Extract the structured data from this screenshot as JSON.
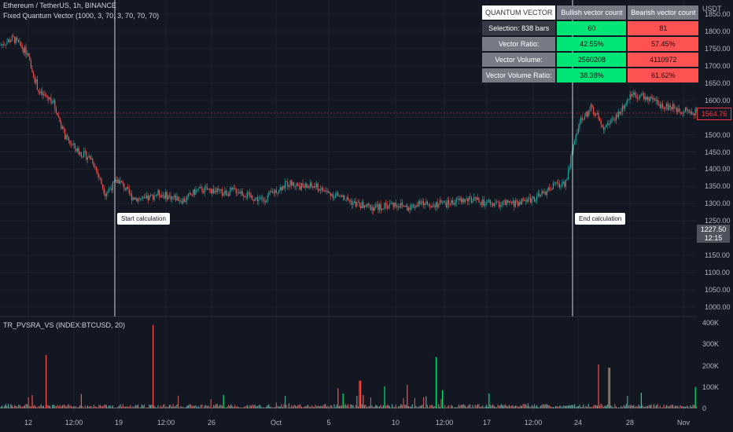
{
  "header": {
    "symbol_line": "Ethereum / TetherUS, 1h, BINANCE",
    "indicator_line": "Fixed Quantum Vector (1000, 3, 70, 3, 70, 70, 70)",
    "volume_indicator": "TR_PVSRA_VS (INDEX:BTCUSD, 20)"
  },
  "price_axis": {
    "currency": "USDT",
    "ticks": [
      "1850.00",
      "1800.00",
      "1750.00",
      "1700.00",
      "1650.00",
      "1600.00",
      "1550.00",
      "1500.00",
      "1450.00",
      "1400.00",
      "1350.00",
      "1300.00",
      "1250.00",
      "1200.00",
      "1150.00",
      "1100.00",
      "1050.00",
      "1000.00"
    ],
    "current_price": "1564.76",
    "crosshair_price": "1227.50",
    "crosshair_time": "12:15"
  },
  "volume_axis": {
    "ticks": [
      "400K",
      "300K",
      "200K",
      "100K",
      "0"
    ]
  },
  "time_axis": {
    "labels": [
      "12",
      "12:00",
      "19",
      "12:00",
      "26",
      "Oct",
      "5",
      "10",
      "12:00",
      "17",
      "12:00",
      "24",
      "28",
      "Nov"
    ]
  },
  "table": {
    "title": "QUANTUM VECTOR",
    "col_bull": "Bullish vector count",
    "col_bear": "Bearish vector count",
    "rows": [
      {
        "label": "Selection: 838 bars",
        "bull": "60",
        "bear": "81"
      },
      {
        "label": "Vector Ratio:",
        "bull": "42.55%",
        "bear": "57.45%"
      },
      {
        "label": "Vector Volume:",
        "bull": "2560208",
        "bear": "4110972"
      },
      {
        "label": "Vector Volume Ratio:",
        "bull": "38.38%",
        "bear": "61.62%"
      }
    ]
  },
  "markers": {
    "start": "Start calculation",
    "end": "End calculation"
  },
  "colors": {
    "bull": "#26a69a",
    "bear": "#ef5350",
    "vector_bull": "#00e676",
    "vector_bear": "#ff5252",
    "background": "#131722",
    "current_price": "#f23645"
  },
  "chart_data": {
    "type": "candlestick",
    "price_ylim": [
      1000,
      1850
    ],
    "volume_ylim": [
      0,
      400000
    ],
    "close_path": [
      {
        "date": "Sep 11",
        "close": 1760
      },
      {
        "date": "Sep 12",
        "close": 1780
      },
      {
        "date": "Sep 13",
        "close": 1740
      },
      {
        "date": "Sep 14",
        "close": 1620
      },
      {
        "date": "Sep 15",
        "close": 1600
      },
      {
        "date": "Sep 16",
        "close": 1490
      },
      {
        "date": "Sep 17",
        "close": 1450
      },
      {
        "date": "Sep 18",
        "close": 1430
      },
      {
        "date": "Sep 19",
        "close": 1330
      },
      {
        "date": "Sep 20",
        "close": 1370
      },
      {
        "date": "Sep 21",
        "close": 1320
      },
      {
        "date": "Sep 22",
        "close": 1310
      },
      {
        "date": "Sep 23",
        "close": 1330
      },
      {
        "date": "Sep 24",
        "close": 1320
      },
      {
        "date": "Sep 25",
        "close": 1310
      },
      {
        "date": "Sep 26",
        "close": 1340
      },
      {
        "date": "Sep 27",
        "close": 1340
      },
      {
        "date": "Sep 28",
        "close": 1330
      },
      {
        "date": "Sep 29",
        "close": 1340
      },
      {
        "date": "Sep 30",
        "close": 1320
      },
      {
        "date": "Oct 1",
        "close": 1310
      },
      {
        "date": "Oct 2",
        "close": 1340
      },
      {
        "date": "Oct 3",
        "close": 1360
      },
      {
        "date": "Oct 4",
        "close": 1350
      },
      {
        "date": "Oct 5",
        "close": 1350
      },
      {
        "date": "Oct 6",
        "close": 1330
      },
      {
        "date": "Oct 7",
        "close": 1320
      },
      {
        "date": "Oct 8",
        "close": 1300
      },
      {
        "date": "Oct 9",
        "close": 1290
      },
      {
        "date": "Oct 10",
        "close": 1290
      },
      {
        "date": "Oct 11",
        "close": 1300
      },
      {
        "date": "Oct 12",
        "close": 1290
      },
      {
        "date": "Oct 13",
        "close": 1300
      },
      {
        "date": "Oct 14",
        "close": 1300
      },
      {
        "date": "Oct 15",
        "close": 1300
      },
      {
        "date": "Oct 16",
        "close": 1310
      },
      {
        "date": "Oct 17",
        "close": 1310
      },
      {
        "date": "Oct 18",
        "close": 1300
      },
      {
        "date": "Oct 19",
        "close": 1300
      },
      {
        "date": "Oct 20",
        "close": 1300
      },
      {
        "date": "Oct 21",
        "close": 1310
      },
      {
        "date": "Oct 22",
        "close": 1320
      },
      {
        "date": "Oct 23",
        "close": 1350
      },
      {
        "date": "Oct 24",
        "close": 1360
      },
      {
        "date": "Oct 25",
        "close": 1530
      },
      {
        "date": "Oct 26",
        "close": 1580
      },
      {
        "date": "Oct 27",
        "close": 1520
      },
      {
        "date": "Oct 28",
        "close": 1560
      },
      {
        "date": "Oct 29",
        "close": 1620
      },
      {
        "date": "Oct 30",
        "close": 1610
      },
      {
        "date": "Oct 31",
        "close": 1590
      },
      {
        "date": "Nov 1",
        "close": 1580
      },
      {
        "date": "Nov 2",
        "close": 1570
      },
      {
        "date": "Nov 3",
        "close": 1564.76
      }
    ]
  }
}
